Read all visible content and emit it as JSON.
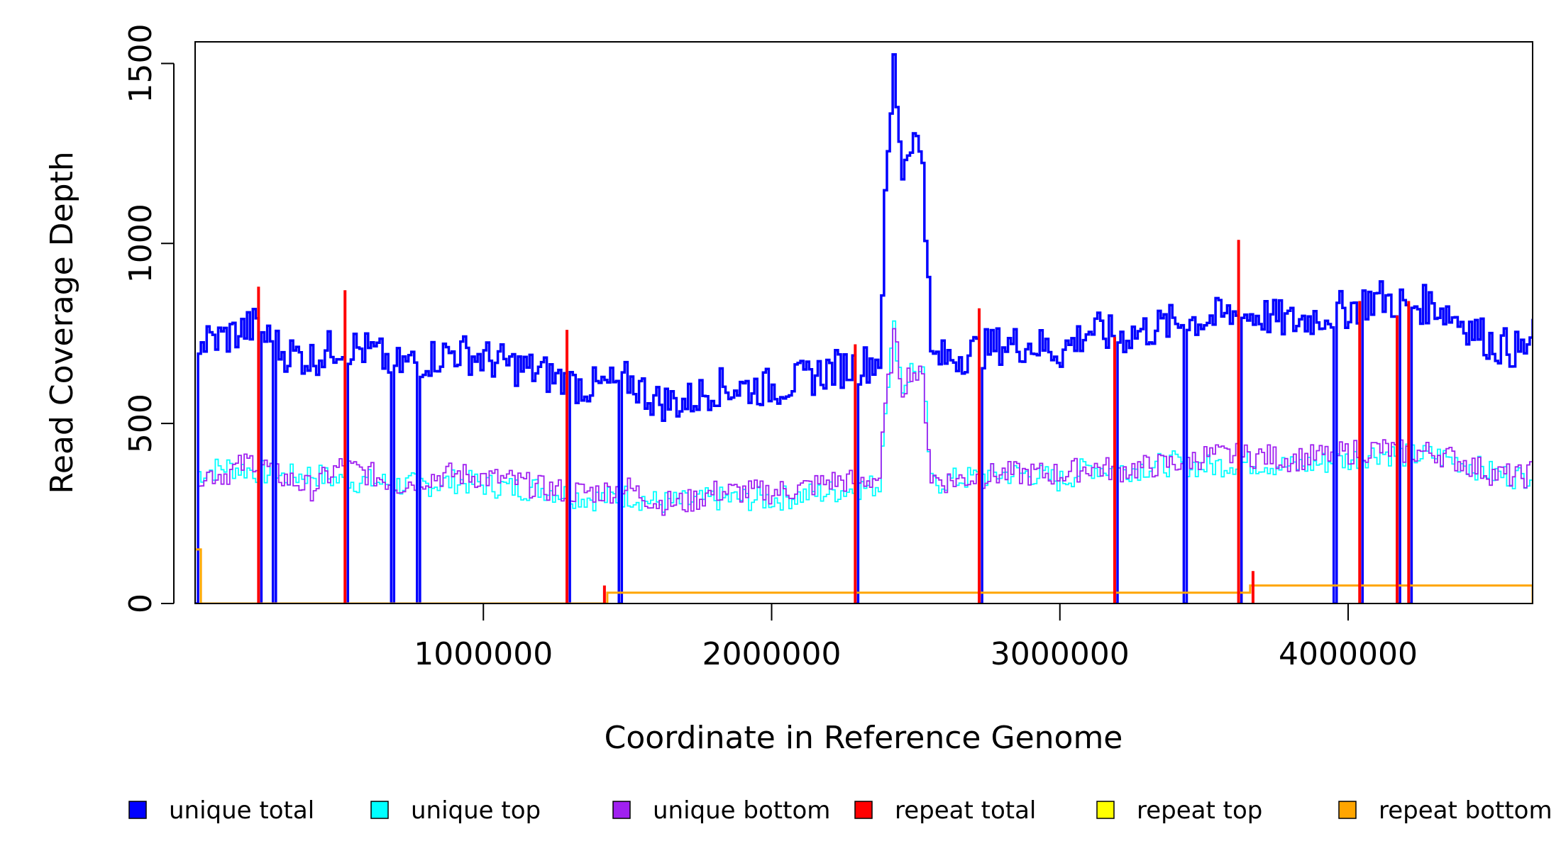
{
  "chart_data": {
    "type": "line",
    "xlabel": "Coordinate in Reference Genome",
    "ylabel": "Read Coverage Depth",
    "xlim": [
      0,
      4640000
    ],
    "ylim": [
      0,
      1560
    ],
    "x_ticks": [
      {
        "value": 1000000,
        "label": "1000000"
      },
      {
        "value": 2000000,
        "label": "2000000"
      },
      {
        "value": 3000000,
        "label": "3000000"
      },
      {
        "value": 4000000,
        "label": "4000000"
      }
    ],
    "y_ticks": [
      {
        "value": 0,
        "label": "0"
      },
      {
        "value": 500,
        "label": "500"
      },
      {
        "value": 1000,
        "label": "1000"
      },
      {
        "value": 1500,
        "label": "1500"
      }
    ],
    "legend": {
      "position": "bottom",
      "entries": [
        {
          "label": "unique total",
          "color": "#0000ff"
        },
        {
          "label": "unique top",
          "color": "#00ffff"
        },
        {
          "label": "unique bottom",
          "color": "#a020f0"
        },
        {
          "label": "repeat total",
          "color": "#ff0000"
        },
        {
          "label": "repeat top",
          "color": "#ffff00"
        },
        {
          "label": "repeat bottom",
          "color": "#ffa500"
        }
      ]
    },
    "series": [
      {
        "name": "unique total",
        "color": "#0000ff",
        "x": [
          0,
          100000,
          200000,
          300000,
          400000,
          500000,
          600000,
          700000,
          800000,
          900000,
          1000000,
          1100000,
          1200000,
          1300000,
          1400000,
          1500000,
          1600000,
          1700000,
          1800000,
          1900000,
          2000000,
          2100000,
          2200000,
          2300000,
          2370000,
          2390000,
          2420000,
          2450000,
          2480000,
          2520000,
          2550000,
          2600000,
          2700000,
          2800000,
          2900000,
          3000000,
          3100000,
          3200000,
          3300000,
          3400000,
          3500000,
          3600000,
          3700000,
          3800000,
          3900000,
          4000000,
          4100000,
          4200000,
          4300000,
          4400000,
          4500000,
          4600000,
          4640000
        ],
        "y": [
          720,
          740,
          770,
          700,
          680,
          720,
          700,
          660,
          680,
          700,
          680,
          660,
          640,
          610,
          600,
          620,
          560,
          560,
          600,
          600,
          600,
          620,
          650,
          660,
          680,
          1100,
          1500,
          1200,
          1300,
          1250,
          680,
          680,
          700,
          720,
          720,
          700,
          760,
          740,
          760,
          780,
          790,
          800,
          800,
          780,
          800,
          820,
          850,
          830,
          830,
          780,
          720,
          700,
          740
        ]
      },
      {
        "name": "unique top",
        "color": "#00ffff",
        "x": [
          0,
          100000,
          200000,
          300000,
          400000,
          500000,
          600000,
          700000,
          800000,
          900000,
          1000000,
          1100000,
          1200000,
          1300000,
          1400000,
          1500000,
          1600000,
          1700000,
          1800000,
          1900000,
          2000000,
          2100000,
          2200000,
          2300000,
          2370000,
          2390000,
          2420000,
          2450000,
          2480000,
          2520000,
          2550000,
          2600000,
          2700000,
          2800000,
          2900000,
          3000000,
          3100000,
          3200000,
          3300000,
          3400000,
          3500000,
          3600000,
          3700000,
          3800000,
          3900000,
          4000000,
          4100000,
          4200000,
          4300000,
          4400000,
          4500000,
          4600000,
          4640000
        ],
        "y": [
          360,
          380,
          370,
          350,
          360,
          340,
          340,
          330,
          330,
          340,
          330,
          320,
          320,
          300,
          290,
          300,
          280,
          280,
          290,
          290,
          290,
          300,
          310,
          320,
          330,
          560,
          760,
          600,
          650,
          630,
          330,
          340,
          350,
          360,
          360,
          340,
          380,
          370,
          380,
          390,
          380,
          390,
          390,
          380,
          390,
          400,
          420,
          410,
          410,
          390,
          360,
          350,
          370
        ]
      },
      {
        "name": "unique bottom",
        "color": "#a020f0",
        "x": [
          0,
          100000,
          200000,
          300000,
          400000,
          500000,
          600000,
          700000,
          800000,
          900000,
          1000000,
          1100000,
          1200000,
          1300000,
          1400000,
          1500000,
          1600000,
          1700000,
          1800000,
          1900000,
          2000000,
          2100000,
          2200000,
          2300000,
          2370000,
          2390000,
          2420000,
          2450000,
          2480000,
          2520000,
          2550000,
          2600000,
          2700000,
          2800000,
          2900000,
          3000000,
          3100000,
          3200000,
          3300000,
          3400000,
          3500000,
          3600000,
          3700000,
          3800000,
          3900000,
          4000000,
          4100000,
          4200000,
          4300000,
          4400000,
          4500000,
          4600000,
          4640000
        ],
        "y": [
          360,
          360,
          400,
          350,
          320,
          380,
          360,
          330,
          350,
          360,
          350,
          340,
          320,
          310,
          310,
          320,
          280,
          280,
          310,
          310,
          310,
          320,
          340,
          340,
          350,
          540,
          740,
          600,
          650,
          620,
          350,
          340,
          350,
          360,
          360,
          360,
          380,
          370,
          380,
          390,
          410,
          410,
          410,
          400,
          410,
          420,
          430,
          420,
          420,
          390,
          360,
          350,
          370
        ]
      },
      {
        "name": "repeat total",
        "color": "#ff0000",
        "x": [
          220000,
          520000,
          1290000,
          1420000,
          2290000,
          2720000,
          3190000,
          3620000,
          3670000,
          4040000,
          4170000,
          4210000
        ],
        "y": [
          880,
          870,
          760,
          50,
          720,
          820,
          740,
          1010,
          90,
          840,
          800,
          840
        ]
      },
      {
        "name": "repeat top",
        "color": "#ffff00",
        "x": [
          0,
          4640000
        ],
        "y": [
          0,
          0
        ]
      },
      {
        "name": "repeat bottom",
        "color": "#ffa500",
        "x": [
          0,
          10000,
          20000,
          1430000,
          3660000,
          4640000
        ],
        "y": [
          150,
          150,
          0,
          30,
          50,
          0
        ]
      }
    ],
    "dips_to_zero": [
      0,
      220000,
      270000,
      520000,
      680000,
      770000,
      1290000,
      1470000,
      2290000,
      2720000,
      3190000,
      3430000,
      3620000,
      3950000,
      4040000,
      4170000,
      4210000
    ]
  }
}
